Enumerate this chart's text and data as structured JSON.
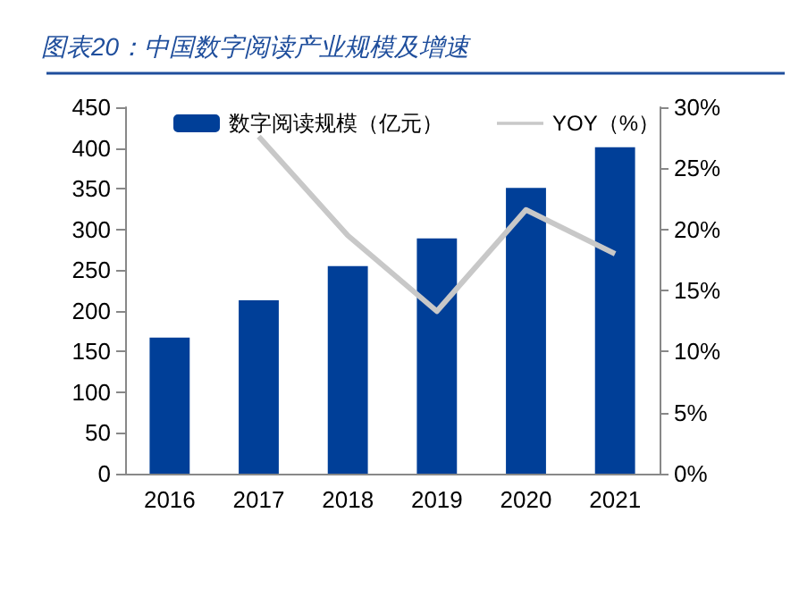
{
  "chart_data": {
    "type": "bar",
    "title": "图表20：中国数字阅读产业规模及增速",
    "categories": [
      "2016",
      "2017",
      "2018",
      "2019",
      "2020",
      "2021"
    ],
    "series": [
      {
        "name": "数字阅读规模（亿元）",
        "color": "#003f98",
        "values": [
          167,
          213,
          255,
          289,
          351,
          401
        ]
      },
      {
        "name": "YOY（%）",
        "type": "line",
        "axis": "y2",
        "color": "#c8c8c8",
        "values": [
          null,
          27.6,
          19.5,
          13.3,
          21.6,
          18.0
        ]
      }
    ],
    "ylim": [
      0,
      450
    ],
    "yticks": [
      0,
      50,
      100,
      150,
      200,
      250,
      300,
      350,
      400,
      450
    ],
    "y2lim": [
      0,
      30
    ],
    "y2ticks": [
      {
        "value": 0,
        "label": "0%"
      },
      {
        "value": 5,
        "label": "5%"
      },
      {
        "value": 10,
        "label": "10%"
      },
      {
        "value": 15,
        "label": "15%"
      },
      {
        "value": 20,
        "label": "20%"
      },
      {
        "value": 25,
        "label": "25%"
      },
      {
        "value": 30,
        "label": "30%"
      }
    ],
    "grid": false,
    "legend": "top",
    "marker": "none"
  }
}
